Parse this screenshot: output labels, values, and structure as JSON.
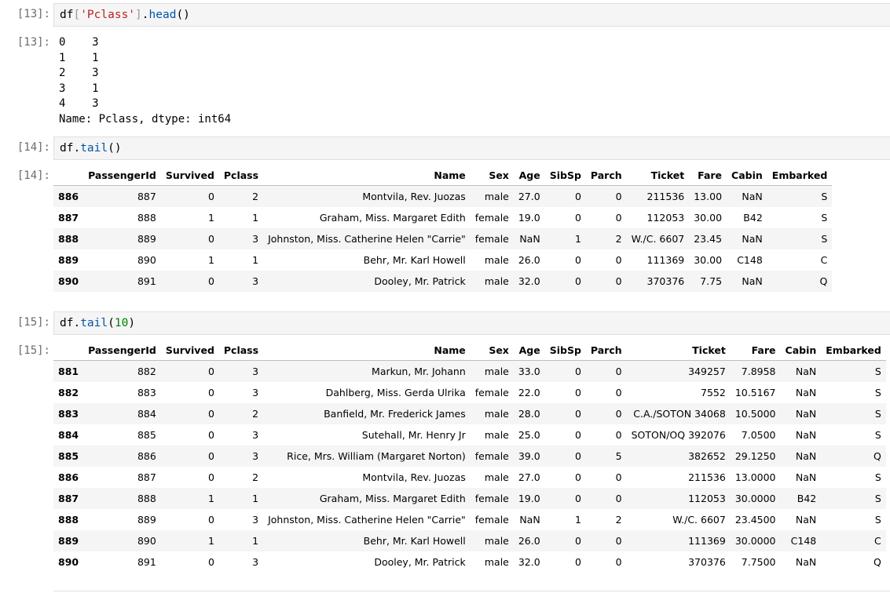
{
  "cells": {
    "c13": {
      "in_prompt": "[13]:",
      "out_prompt": "[13]:",
      "code": {
        "obj": "df",
        "lbr": "[",
        "key": "'Pclass'",
        "rbr": "]",
        "dot": ".",
        "fn": "head",
        "args": "()"
      },
      "stdout": "0    3\n1    1\n2    3\n3    1\n4    3\nName: Pclass, dtype: int64"
    },
    "c14": {
      "in_prompt": "[14]:",
      "out_prompt": "[14]:",
      "code": {
        "obj": "df",
        "dot": ".",
        "fn": "tail",
        "args": "()"
      },
      "columns": [
        "",
        "PassengerId",
        "Survived",
        "Pclass",
        "Name",
        "Sex",
        "Age",
        "SibSp",
        "Parch",
        "Ticket",
        "Fare",
        "Cabin",
        "Embarked"
      ],
      "rows": [
        [
          "886",
          "887",
          "0",
          "2",
          "Montvila, Rev. Juozas",
          "male",
          "27.0",
          "0",
          "0",
          "211536",
          "13.00",
          "NaN",
          "S"
        ],
        [
          "887",
          "888",
          "1",
          "1",
          "Graham, Miss. Margaret Edith",
          "female",
          "19.0",
          "0",
          "0",
          "112053",
          "30.00",
          "B42",
          "S"
        ],
        [
          "888",
          "889",
          "0",
          "3",
          "Johnston, Miss. Catherine Helen \"Carrie\"",
          "female",
          "NaN",
          "1",
          "2",
          "W./C. 6607",
          "23.45",
          "NaN",
          "S"
        ],
        [
          "889",
          "890",
          "1",
          "1",
          "Behr, Mr. Karl Howell",
          "male",
          "26.0",
          "0",
          "0",
          "111369",
          "30.00",
          "C148",
          "C"
        ],
        [
          "890",
          "891",
          "0",
          "3",
          "Dooley, Mr. Patrick",
          "male",
          "32.0",
          "0",
          "0",
          "370376",
          "7.75",
          "NaN",
          "Q"
        ]
      ]
    },
    "c15": {
      "in_prompt": "[15]:",
      "out_prompt": "[15]:",
      "code": {
        "obj": "df",
        "dot": ".",
        "fn": "tail",
        "lp": "(",
        "num": "10",
        "rp": ")"
      },
      "columns": [
        "",
        "PassengerId",
        "Survived",
        "Pclass",
        "Name",
        "Sex",
        "Age",
        "SibSp",
        "Parch",
        "Ticket",
        "Fare",
        "Cabin",
        "Embarked"
      ],
      "rows": [
        [
          "881",
          "882",
          "0",
          "3",
          "Markun, Mr. Johann",
          "male",
          "33.0",
          "0",
          "0",
          "349257",
          "7.8958",
          "NaN",
          "S"
        ],
        [
          "882",
          "883",
          "0",
          "3",
          "Dahlberg, Miss. Gerda Ulrika",
          "female",
          "22.0",
          "0",
          "0",
          "7552",
          "10.5167",
          "NaN",
          "S"
        ],
        [
          "883",
          "884",
          "0",
          "2",
          "Banfield, Mr. Frederick James",
          "male",
          "28.0",
          "0",
          "0",
          "C.A./SOTON 34068",
          "10.5000",
          "NaN",
          "S"
        ],
        [
          "884",
          "885",
          "0",
          "3",
          "Sutehall, Mr. Henry Jr",
          "male",
          "25.0",
          "0",
          "0",
          "SOTON/OQ 392076",
          "7.0500",
          "NaN",
          "S"
        ],
        [
          "885",
          "886",
          "0",
          "3",
          "Rice, Mrs. William (Margaret Norton)",
          "female",
          "39.0",
          "0",
          "5",
          "382652",
          "29.1250",
          "NaN",
          "Q"
        ],
        [
          "886",
          "887",
          "0",
          "2",
          "Montvila, Rev. Juozas",
          "male",
          "27.0",
          "0",
          "0",
          "211536",
          "13.0000",
          "NaN",
          "S"
        ],
        [
          "887",
          "888",
          "1",
          "1",
          "Graham, Miss. Margaret Edith",
          "female",
          "19.0",
          "0",
          "0",
          "112053",
          "30.0000",
          "B42",
          "S"
        ],
        [
          "888",
          "889",
          "0",
          "3",
          "Johnston, Miss. Catherine Helen \"Carrie\"",
          "female",
          "NaN",
          "1",
          "2",
          "W./C. 6607",
          "23.4500",
          "NaN",
          "S"
        ],
        [
          "889",
          "890",
          "1",
          "1",
          "Behr, Mr. Karl Howell",
          "male",
          "26.0",
          "0",
          "0",
          "111369",
          "30.0000",
          "C148",
          "C"
        ],
        [
          "890",
          "891",
          "0",
          "3",
          "Dooley, Mr. Patrick",
          "male",
          "32.0",
          "0",
          "0",
          "370376",
          "7.7500",
          "NaN",
          "Q"
        ]
      ]
    }
  }
}
